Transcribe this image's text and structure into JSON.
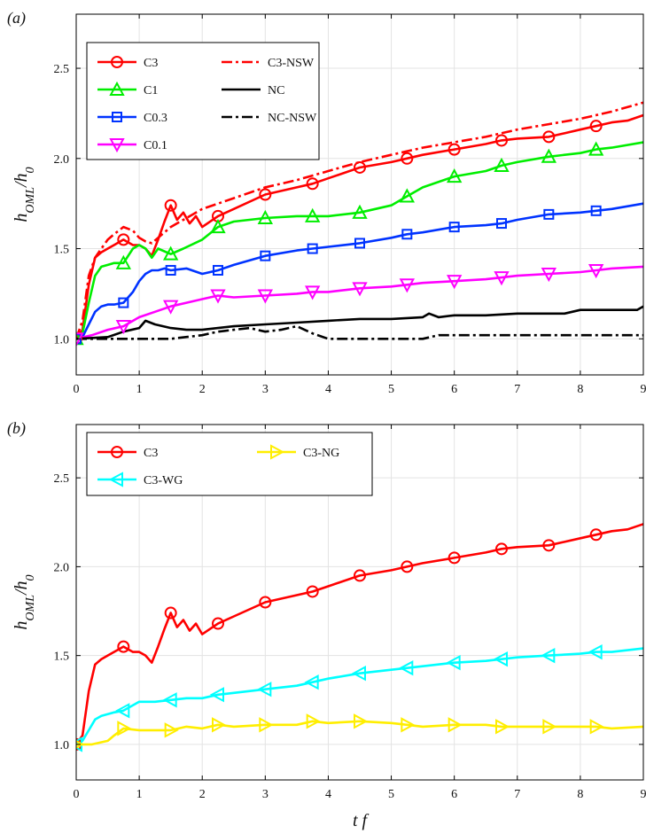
{
  "chart_data": [
    {
      "type": "line",
      "panel_label": "(a)",
      "ylabel": "h_OML/h_0",
      "xlabel": "",
      "xlim": [
        0,
        9
      ],
      "ylim": [
        0.8,
        2.8
      ],
      "xticks": [
        0,
        1,
        2,
        3,
        4,
        5,
        6,
        7,
        8,
        9
      ],
      "yticks": [
        1.0,
        1.5,
        2.0,
        2.5
      ],
      "grid": true,
      "legend": "top-left",
      "series": [
        {
          "name": "C3",
          "color": "#ff0000",
          "dash": "solid",
          "marker": "circle",
          "x": [
            0,
            0.1,
            0.2,
            0.3,
            0.4,
            0.5,
            0.6,
            0.75,
            0.9,
            1.0,
            1.1,
            1.2,
            1.3,
            1.4,
            1.5,
            1.6,
            1.7,
            1.8,
            1.9,
            2.0,
            2.25,
            2.5,
            3.0,
            3.5,
            3.75,
            4.0,
            4.5,
            5.0,
            5.25,
            5.5,
            6.0,
            6.5,
            6.75,
            7.0,
            7.5,
            8.0,
            8.25,
            8.5,
            8.75,
            9.0
          ],
          "y": [
            1.0,
            1.05,
            1.3,
            1.45,
            1.48,
            1.5,
            1.52,
            1.55,
            1.52,
            1.52,
            1.5,
            1.46,
            1.55,
            1.65,
            1.74,
            1.66,
            1.7,
            1.64,
            1.68,
            1.62,
            1.68,
            1.72,
            1.8,
            1.84,
            1.86,
            1.89,
            1.95,
            1.98,
            2.0,
            2.02,
            2.05,
            2.08,
            2.1,
            2.11,
            2.12,
            2.16,
            2.18,
            2.2,
            2.21,
            2.24
          ],
          "marker_x": [
            0,
            0.75,
            1.5,
            2.25,
            3.0,
            3.75,
            4.5,
            5.25,
            6.0,
            6.75,
            7.5,
            8.25
          ]
        },
        {
          "name": "C1",
          "color": "#00ee00",
          "dash": "solid",
          "marker": "triangle-up",
          "x": [
            0,
            0.1,
            0.2,
            0.3,
            0.4,
            0.5,
            0.6,
            0.75,
            0.9,
            1.0,
            1.1,
            1.2,
            1.3,
            1.5,
            1.7,
            2.0,
            2.25,
            2.5,
            3.0,
            3.5,
            3.75,
            4.0,
            4.5,
            5.0,
            5.25,
            5.5,
            6.0,
            6.5,
            6.75,
            7.0,
            7.5,
            8.0,
            8.25,
            8.5,
            9.0
          ],
          "y": [
            1.0,
            1.03,
            1.2,
            1.35,
            1.4,
            1.41,
            1.42,
            1.42,
            1.5,
            1.52,
            1.5,
            1.45,
            1.5,
            1.47,
            1.5,
            1.55,
            1.62,
            1.65,
            1.67,
            1.68,
            1.68,
            1.68,
            1.7,
            1.74,
            1.79,
            1.84,
            1.9,
            1.93,
            1.96,
            1.98,
            2.01,
            2.03,
            2.05,
            2.06,
            2.09
          ],
          "marker_x": [
            0,
            0.75,
            1.5,
            2.25,
            3.0,
            3.75,
            4.5,
            5.25,
            6.0,
            6.75,
            7.5,
            8.25
          ]
        },
        {
          "name": "C0.3",
          "color": "#0033ff",
          "dash": "solid",
          "marker": "square",
          "x": [
            0,
            0.1,
            0.2,
            0.3,
            0.4,
            0.5,
            0.6,
            0.75,
            0.9,
            1.0,
            1.1,
            1.2,
            1.3,
            1.4,
            1.5,
            1.75,
            2.0,
            2.25,
            2.5,
            3.0,
            3.5,
            3.75,
            4.0,
            4.5,
            5.0,
            5.25,
            5.5,
            6.0,
            6.5,
            6.75,
            7.0,
            7.5,
            8.0,
            8.25,
            8.5,
            9.0
          ],
          "y": [
            1.0,
            1.01,
            1.08,
            1.15,
            1.18,
            1.19,
            1.19,
            1.2,
            1.26,
            1.32,
            1.36,
            1.38,
            1.38,
            1.39,
            1.38,
            1.39,
            1.36,
            1.38,
            1.41,
            1.46,
            1.49,
            1.5,
            1.51,
            1.53,
            1.56,
            1.58,
            1.59,
            1.62,
            1.63,
            1.64,
            1.66,
            1.69,
            1.7,
            1.71,
            1.72,
            1.75
          ],
          "marker_x": [
            0,
            0.75,
            1.5,
            2.25,
            3.0,
            3.75,
            4.5,
            5.25,
            6.0,
            6.75,
            7.5,
            8.25
          ]
        },
        {
          "name": "C0.1",
          "color": "#ff00ff",
          "dash": "solid",
          "marker": "triangle-down",
          "x": [
            0,
            0.25,
            0.5,
            0.75,
            1.0,
            1.25,
            1.5,
            1.75,
            2.0,
            2.25,
            2.5,
            3.0,
            3.5,
            3.75,
            4.0,
            4.5,
            5.0,
            5.25,
            5.5,
            6.0,
            6.5,
            6.75,
            7.0,
            7.5,
            8.0,
            8.25,
            8.5,
            9.0
          ],
          "y": [
            1.0,
            1.02,
            1.05,
            1.07,
            1.12,
            1.15,
            1.18,
            1.2,
            1.22,
            1.24,
            1.23,
            1.24,
            1.25,
            1.26,
            1.26,
            1.28,
            1.29,
            1.3,
            1.31,
            1.32,
            1.33,
            1.34,
            1.35,
            1.36,
            1.37,
            1.38,
            1.39,
            1.4
          ],
          "marker_x": [
            0,
            0.75,
            1.5,
            2.25,
            3.0,
            3.75,
            4.5,
            5.25,
            6.0,
            6.75,
            7.5,
            8.25
          ]
        },
        {
          "name": "C3-NSW",
          "color": "#ff0000",
          "dash": "dashdot",
          "marker": "none",
          "x": [
            0,
            0.1,
            0.2,
            0.3,
            0.4,
            0.5,
            0.6,
            0.75,
            0.9,
            1.0,
            1.1,
            1.2,
            1.3,
            1.5,
            1.75,
            2.0,
            2.5,
            3.0,
            3.5,
            4.0,
            4.5,
            5.0,
            5.5,
            6.0,
            6.5,
            7.0,
            7.5,
            8.0,
            8.5,
            9.0
          ],
          "y": [
            1.0,
            1.1,
            1.35,
            1.45,
            1.5,
            1.55,
            1.58,
            1.62,
            1.6,
            1.56,
            1.54,
            1.53,
            1.56,
            1.62,
            1.67,
            1.72,
            1.78,
            1.84,
            1.88,
            1.93,
            1.98,
            2.02,
            2.06,
            2.09,
            2.12,
            2.16,
            2.19,
            2.22,
            2.26,
            2.31
          ]
        },
        {
          "name": "NC",
          "color": "#000000",
          "dash": "solid",
          "marker": "none",
          "x": [
            0,
            0.5,
            0.75,
            1.0,
            1.1,
            1.25,
            1.5,
            1.75,
            2.0,
            2.25,
            2.5,
            3.0,
            3.5,
            4.0,
            4.5,
            5.0,
            5.5,
            5.6,
            5.75,
            6.0,
            6.5,
            7.0,
            7.5,
            7.75,
            8.0,
            8.5,
            8.9,
            9.0
          ],
          "y": [
            1.0,
            1.01,
            1.04,
            1.06,
            1.1,
            1.08,
            1.06,
            1.05,
            1.05,
            1.06,
            1.07,
            1.08,
            1.09,
            1.1,
            1.11,
            1.11,
            1.12,
            1.14,
            1.12,
            1.13,
            1.13,
            1.14,
            1.14,
            1.14,
            1.16,
            1.16,
            1.16,
            1.18
          ]
        },
        {
          "name": "NC-NSW",
          "color": "#000000",
          "dash": "dashdot",
          "marker": "none",
          "x": [
            0,
            0.5,
            1.0,
            1.5,
            2.0,
            2.25,
            2.5,
            2.75,
            3.0,
            3.25,
            3.5,
            3.75,
            4.0,
            5.0,
            5.5,
            5.75,
            6.0,
            7.0,
            8.0,
            9.0
          ],
          "y": [
            1.0,
            1.0,
            1.0,
            1.0,
            1.02,
            1.04,
            1.05,
            1.06,
            1.04,
            1.05,
            1.07,
            1.03,
            1.0,
            1.0,
            1.0,
            1.02,
            1.02,
            1.02,
            1.02,
            1.02
          ]
        }
      ]
    },
    {
      "type": "line",
      "panel_label": "(b)",
      "ylabel": "h_OML/h_0",
      "xlabel": "tf",
      "xlim": [
        0,
        9
      ],
      "ylim": [
        0.8,
        2.8
      ],
      "xticks": [
        0,
        1,
        2,
        3,
        4,
        5,
        6,
        7,
        8,
        9
      ],
      "yticks": [
        1.0,
        1.5,
        2.0,
        2.5
      ],
      "grid": true,
      "legend": "top-left",
      "series": [
        {
          "name": "C3",
          "color": "#ff0000",
          "dash": "solid",
          "marker": "circle",
          "x": [
            0,
            0.1,
            0.2,
            0.3,
            0.4,
            0.5,
            0.6,
            0.75,
            0.9,
            1.0,
            1.1,
            1.2,
            1.3,
            1.4,
            1.5,
            1.6,
            1.7,
            1.8,
            1.9,
            2.0,
            2.25,
            2.5,
            3.0,
            3.5,
            3.75,
            4.0,
            4.5,
            5.0,
            5.25,
            5.5,
            6.0,
            6.5,
            6.75,
            7.0,
            7.5,
            8.0,
            8.25,
            8.5,
            8.75,
            9.0
          ],
          "y": [
            1.0,
            1.05,
            1.3,
            1.45,
            1.48,
            1.5,
            1.52,
            1.55,
            1.52,
            1.52,
            1.5,
            1.46,
            1.55,
            1.65,
            1.74,
            1.66,
            1.7,
            1.64,
            1.68,
            1.62,
            1.68,
            1.72,
            1.8,
            1.84,
            1.86,
            1.89,
            1.95,
            1.98,
            2.0,
            2.02,
            2.05,
            2.08,
            2.1,
            2.11,
            2.12,
            2.16,
            2.18,
            2.2,
            2.21,
            2.24
          ],
          "marker_x": [
            0,
            0.75,
            1.5,
            2.25,
            3.0,
            3.75,
            4.5,
            5.25,
            6.0,
            6.75,
            7.5,
            8.25
          ]
        },
        {
          "name": "C3-WG",
          "color": "#00ffff",
          "dash": "solid",
          "marker": "triangle-left",
          "x": [
            0,
            0.1,
            0.2,
            0.3,
            0.4,
            0.5,
            0.6,
            0.75,
            0.9,
            1.0,
            1.25,
            1.5,
            1.75,
            2.0,
            2.25,
            2.5,
            3.0,
            3.5,
            3.75,
            4.0,
            4.5,
            5.0,
            5.25,
            5.5,
            6.0,
            6.5,
            6.75,
            7.0,
            7.5,
            8.0,
            8.25,
            8.5,
            9.0
          ],
          "y": [
            1.0,
            1.02,
            1.08,
            1.14,
            1.16,
            1.17,
            1.18,
            1.19,
            1.22,
            1.24,
            1.24,
            1.25,
            1.26,
            1.26,
            1.28,
            1.29,
            1.31,
            1.33,
            1.35,
            1.37,
            1.4,
            1.42,
            1.43,
            1.44,
            1.46,
            1.47,
            1.48,
            1.49,
            1.5,
            1.51,
            1.52,
            1.52,
            1.54
          ],
          "marker_x": [
            0,
            0.75,
            1.5,
            2.25,
            3.0,
            3.75,
            4.5,
            5.25,
            6.0,
            6.75,
            7.5,
            8.25
          ]
        },
        {
          "name": "C3-NG",
          "color": "#ffee00",
          "dash": "solid",
          "marker": "triangle-right",
          "x": [
            0,
            0.25,
            0.5,
            0.6,
            0.75,
            1.0,
            1.25,
            1.5,
            1.75,
            2.0,
            2.25,
            2.5,
            3.0,
            3.5,
            3.75,
            4.0,
            4.5,
            5.0,
            5.25,
            5.5,
            6.0,
            6.5,
            6.75,
            7.0,
            7.5,
            8.0,
            8.25,
            8.5,
            9.0
          ],
          "y": [
            1.0,
            1.0,
            1.02,
            1.05,
            1.09,
            1.08,
            1.08,
            1.08,
            1.1,
            1.09,
            1.11,
            1.1,
            1.11,
            1.11,
            1.13,
            1.12,
            1.13,
            1.12,
            1.11,
            1.1,
            1.11,
            1.11,
            1.1,
            1.1,
            1.1,
            1.1,
            1.1,
            1.09,
            1.1
          ],
          "marker_x": [
            0,
            0.75,
            1.5,
            2.25,
            3.0,
            3.75,
            4.5,
            5.25,
            6.0,
            6.75,
            7.5,
            8.25
          ]
        }
      ]
    }
  ],
  "legends": [
    {
      "panel": 0,
      "entries": [
        {
          "series": "C3",
          "label": "C3"
        },
        {
          "series": "C3-NSW",
          "label": "C3-NSW"
        },
        {
          "series": "C1",
          "label": "C1"
        },
        {
          "series": "NC",
          "label": "NC"
        },
        {
          "series": "C0.3",
          "label": "C0.3"
        },
        {
          "series": "NC-NSW",
          "label": "NC-NSW"
        },
        {
          "series": "C0.1",
          "label": "C0.1"
        }
      ]
    },
    {
      "panel": 1,
      "entries": [
        {
          "series": "C3",
          "label": "C3"
        },
        {
          "series": "C3-NG",
          "label": "C3-NG"
        },
        {
          "series": "C3-WG",
          "label": "C3-WG"
        }
      ]
    }
  ]
}
